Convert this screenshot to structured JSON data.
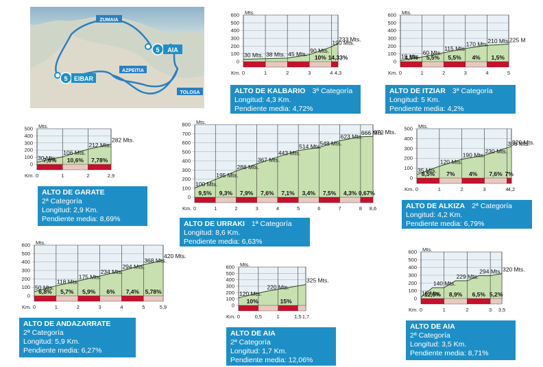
{
  "map": {
    "labels": [
      "ZUMAIA",
      "AZPEITIA",
      "TOLOSA"
    ],
    "badges": [
      {
        "num": "5",
        "name": "EIBAR"
      },
      {
        "num": "5",
        "name": "AIA"
      }
    ]
  },
  "common": {
    "y_unit": "Mts.",
    "x_unit": "Km."
  },
  "chart_data": [
    {
      "type": "area",
      "id": "kalbario",
      "name": "ALTO DE KALBARIO",
      "category": "3ª Categoría",
      "length": "Longitud:  4,3 Km.",
      "slope": "Pendiente media:  4,72%",
      "ylim": [
        0,
        600
      ],
      "yticks": [
        "0",
        "100",
        "200",
        "300",
        "400",
        "500",
        "600"
      ],
      "xticks": [
        "0",
        "1",
        "2",
        "3",
        "4",
        "4,3"
      ],
      "x": [
        0,
        1,
        2,
        3,
        4,
        4.3
      ],
      "y": [
        30,
        38,
        45,
        90,
        190,
        233
      ],
      "labels": [
        "30 Mts.",
        "38 Mts.",
        "45 Mts.",
        "90 Mts.",
        "190 Mts.",
        "233 Mts."
      ],
      "segments": [
        {
          "x": 3.5,
          "pct": "10%"
        },
        {
          "x": 4.3,
          "pct": "14,33%"
        }
      ]
    },
    {
      "type": "area",
      "id": "itziar",
      "name": "ALTO DE ITZIAR",
      "category": "3ª Categoría",
      "length": "Longitud:  5 Km.",
      "slope": "Pendiente media:  4,2%",
      "ylim": [
        0,
        600
      ],
      "yticks": [
        "0",
        "100",
        "200",
        "300",
        "400",
        "500",
        "600"
      ],
      "xticks": [
        "0",
        "1",
        "2",
        "3",
        "4",
        "5"
      ],
      "x": [
        0,
        1,
        2,
        3,
        4,
        5
      ],
      "y": [
        15,
        60,
        115,
        170,
        210,
        225
      ],
      "labels": [
        "15 Mts.",
        "60 Mts.",
        "115 Mts.",
        "170 Mts.",
        "210 Mts.",
        "225 M"
      ],
      "segments": [
        {
          "x": 0.5,
          "pct": "4,5%"
        },
        {
          "x": 1.5,
          "pct": "5,5%"
        },
        {
          "x": 2.5,
          "pct": "5,5%"
        },
        {
          "x": 3.5,
          "pct": "4%"
        },
        {
          "x": 4.5,
          "pct": "1,5%"
        }
      ]
    },
    {
      "type": "area",
      "id": "garate",
      "name": "ALTO DE GARATE",
      "category": "2ª Categoría",
      "length": "Longitud:  2,9 Km.",
      "slope": "Pendiente media:  8,69%",
      "ylim": [
        0,
        500
      ],
      "yticks": [
        "0",
        "100",
        "200",
        "300",
        "400",
        "500"
      ],
      "xticks": [
        "0",
        "1",
        "2",
        "2,9"
      ],
      "x": [
        0,
        1,
        2,
        2.9
      ],
      "y": [
        30,
        106,
        212,
        282
      ],
      "labels": [
        "30 Mts.",
        "106 Mts.",
        "212 Mts.",
        "282 Mts."
      ],
      "segments": [
        {
          "x": 0.5,
          "pct": "7,6%"
        },
        {
          "x": 1.5,
          "pct": "10,6%"
        },
        {
          "x": 2.45,
          "pct": "7,78%"
        }
      ]
    },
    {
      "type": "area",
      "id": "urraki",
      "name": "ALTO DE URRAKI",
      "category": "1ª Categoría",
      "length": "Longitud:  8,6 Km.",
      "slope": "Pendiente media:  6,63%",
      "ylim": [
        0,
        800
      ],
      "yticks": [
        "0",
        "100",
        "200",
        "300",
        "400",
        "500",
        "600",
        "700",
        "800"
      ],
      "xticks": [
        "0",
        "1",
        "2",
        "3",
        "4",
        "5",
        "6",
        "7",
        "8",
        "8,6"
      ],
      "x": [
        0,
        1,
        2,
        3,
        4,
        5,
        6,
        7,
        8,
        8.6
      ],
      "y": [
        100,
        195,
        288,
        367,
        443,
        514,
        548,
        623,
        666,
        670
      ],
      "labels": [
        "100 Mts.",
        "195 Mts.",
        "288 Mts.",
        "367 Mts.",
        "443 Mts.",
        "514 Mts.",
        "548 Mts.",
        "623 Mts.",
        "666 Mts.",
        "670 Mts."
      ],
      "segments": [
        {
          "x": 0.5,
          "pct": "9,5%"
        },
        {
          "x": 1.5,
          "pct": "9,3%"
        },
        {
          "x": 2.5,
          "pct": "7,9%"
        },
        {
          "x": 3.5,
          "pct": "7,6%"
        },
        {
          "x": 4.5,
          "pct": "7,1%"
        },
        {
          "x": 5.5,
          "pct": "3,4%"
        },
        {
          "x": 6.5,
          "pct": "7,5%"
        },
        {
          "x": 7.5,
          "pct": "4,3%"
        },
        {
          "x": 8.3,
          "pct": "0,67%"
        }
      ]
    },
    {
      "type": "area",
      "id": "alkiza",
      "name": "ALTO DE ALKIZA",
      "category": "2ª Categoría",
      "length": "Longitud:  4,2 Km.",
      "slope": "Pendiente media:  6,79%",
      "ylim": [
        0,
        500
      ],
      "yticks": [
        "0",
        "100",
        "200",
        "300",
        "400",
        "500"
      ],
      "xticks": [
        "0",
        "1",
        "2",
        "3",
        "4",
        "4,2"
      ],
      "x": [
        0,
        1,
        2,
        3,
        4,
        4.2
      ],
      "y": [
        35,
        120,
        190,
        230,
        306,
        320
      ],
      "labels": [
        "35 Mts.",
        "120 Mts.",
        "190 Mts.",
        "230 Mts.",
        "306 Mts.",
        "320 Mts."
      ],
      "segments": [
        {
          "x": 0.5,
          "pct": "8,5%"
        },
        {
          "x": 1.5,
          "pct": "7%"
        },
        {
          "x": 2.5,
          "pct": "4%"
        },
        {
          "x": 3.5,
          "pct": "7,6%"
        },
        {
          "x": 4.1,
          "pct": "7%"
        }
      ]
    },
    {
      "type": "area",
      "id": "andazarrate",
      "name": "ALTO DE ANDAZARRATE",
      "category": "2ª Categoría",
      "length": "Longitud:  5,9 Km.",
      "slope": "Pendiente media:  6,27%",
      "ylim": [
        0,
        600
      ],
      "yticks": [
        "0",
        "100",
        "200",
        "300",
        "400",
        "500",
        "600"
      ],
      "xticks": [
        "0",
        "1",
        "2",
        "3",
        "4",
        "5",
        "5,9"
      ],
      "x": [
        0,
        1,
        2,
        3,
        4,
        5,
        5.9
      ],
      "y": [
        50,
        118,
        175,
        234,
        294,
        368,
        420
      ],
      "labels": [
        "50 Mts.",
        "118 Mts.",
        "175 Mts.",
        "234 Mts.",
        "294 Mts.",
        "368 Mts.",
        "420 Mts."
      ],
      "segments": [
        {
          "x": 0.5,
          "pct": "6,8%"
        },
        {
          "x": 1.5,
          "pct": "5,7%"
        },
        {
          "x": 2.5,
          "pct": "5,9%"
        },
        {
          "x": 3.5,
          "pct": "6%"
        },
        {
          "x": 4.5,
          "pct": "7,4%"
        },
        {
          "x": 5.45,
          "pct": "5,78%"
        }
      ]
    },
    {
      "type": "area",
      "id": "aia1",
      "name": "ALTO DE AIA",
      "category": "2ª Categoría",
      "length": "Longitud:  1,7 Km.",
      "slope": "Pendiente media:  12,06%",
      "ylim": [
        0,
        600
      ],
      "yticks": [
        "0",
        "100",
        "200",
        "300",
        "400",
        "500",
        "600"
      ],
      "xticks": [
        "0",
        "0,5",
        "1",
        "1,5",
        "1,7"
      ],
      "x": [
        0,
        0.7,
        1.7
      ],
      "y": [
        120,
        220,
        325
      ],
      "labels": [
        "120 Mts.",
        "220 Mts.",
        "325 Mts."
      ],
      "segments": [
        {
          "x": 0.35,
          "pct": "10%"
        },
        {
          "x": 1.2,
          "pct": "15%"
        }
      ]
    },
    {
      "type": "area",
      "id": "aia2",
      "name": "ALTO DE AIA",
      "category": "2ª Categoría",
      "length": "Longitud:  3,5 Km.",
      "slope": "Pendiente media:  8,71%",
      "ylim": [
        0,
        600
      ],
      "yticks": [
        "0",
        "100",
        "200",
        "300",
        "400",
        "500",
        "600"
      ],
      "xticks": [
        "0",
        "1",
        "2",
        "3",
        "3,5"
      ],
      "x": [
        0,
        0.5,
        1,
        1.5,
        2,
        2.5,
        3,
        3.5
      ],
      "y": [
        15,
        140,
        140,
        229,
        229,
        294,
        294,
        320
      ],
      "labels": [
        "15 Mts.",
        "140 Mts.",
        "229 Mts.",
        "294 Mts.",
        "320 Mts."
      ],
      "segments": [
        {
          "x": 0.5,
          "pct": "12,5%"
        },
        {
          "x": 1.5,
          "pct": "8,9%"
        },
        {
          "x": 2.5,
          "pct": "6,5%"
        },
        {
          "x": 3.25,
          "pct": "5,2%"
        }
      ]
    }
  ]
}
